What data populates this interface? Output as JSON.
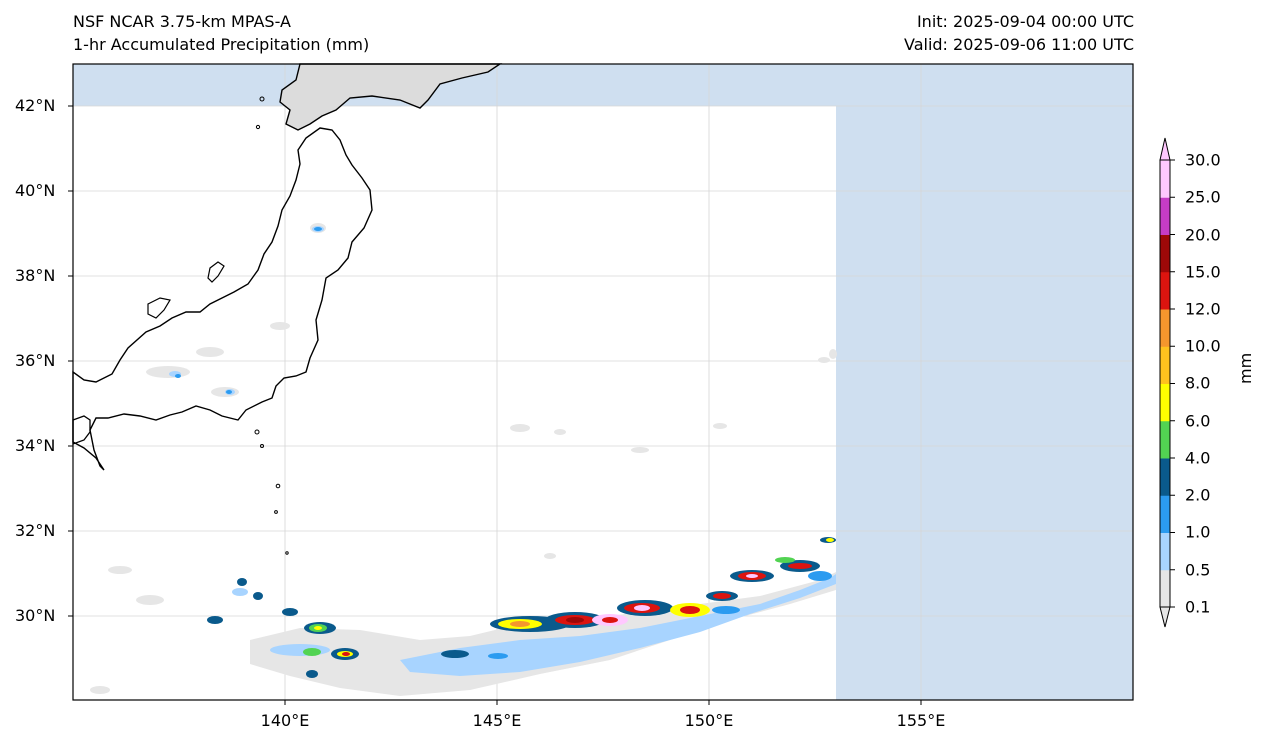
{
  "header": {
    "title_line1": "NSF NCAR 3.75-km MPAS-A",
    "title_line2": "1-hr Accumulated Precipitation (mm)",
    "init": "Init: 2025-09-04 00:00 UTC",
    "valid": "Valid: 2025-09-06 11:00 UTC"
  },
  "map": {
    "extent": {
      "lon_min": 135,
      "lon_max": 160,
      "lat_min": 28,
      "lat_max": 43
    },
    "lat_ticks": [
      {
        "value": 42,
        "label": "42°N"
      },
      {
        "value": 40,
        "label": "40°N"
      },
      {
        "value": 38,
        "label": "38°N"
      },
      {
        "value": 36,
        "label": "36°N"
      },
      {
        "value": 34,
        "label": "34°N"
      },
      {
        "value": 32,
        "label": "32°N"
      },
      {
        "value": 30,
        "label": "30°N"
      }
    ],
    "lon_ticks": [
      {
        "value": 140,
        "label": "140°E"
      },
      {
        "value": 145,
        "label": "145°E"
      },
      {
        "value": 150,
        "label": "150°E"
      },
      {
        "value": 155,
        "label": "155°E"
      }
    ],
    "colors": {
      "outside_domain": "#cfdff0",
      "land": "#dcdcdc",
      "coast": "#000000",
      "grid": "#d6d6d6"
    }
  },
  "colorbar": {
    "units": "mm",
    "levels": [
      "0.1",
      "0.5",
      "1.0",
      "2.0",
      "4.0",
      "6.0",
      "8.0",
      "10.0",
      "12.0",
      "15.0",
      "20.0",
      "25.0",
      "30.0"
    ],
    "colors": [
      "#e6e6e6",
      "#a8d4ff",
      "#2b9bf0",
      "#0a5a8c",
      "#52d352",
      "#ffff00",
      "#ffc21e",
      "#f5962d",
      "#dc140f",
      "#9e0808",
      "#c63cc6",
      "#ffc8ff"
    ]
  }
}
